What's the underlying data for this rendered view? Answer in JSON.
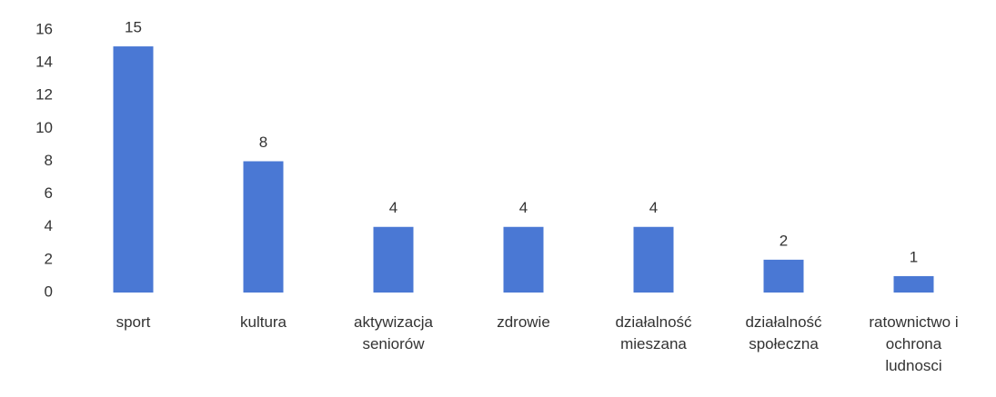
{
  "chart_data": {
    "type": "bar",
    "categories": [
      "sport",
      "kultura",
      "aktywizacja seniorów",
      "zdrowie",
      "działalność mieszana",
      "działalność społeczna",
      "ratownictwo i ochrona ludnosci"
    ],
    "values": [
      15,
      8,
      4,
      4,
      4,
      2,
      1
    ],
    "color": "#4a78d4",
    "ylim": [
      0,
      16
    ],
    "yticks": [
      0,
      2,
      4,
      6,
      8,
      10,
      12,
      14,
      16
    ],
    "grid": false
  }
}
